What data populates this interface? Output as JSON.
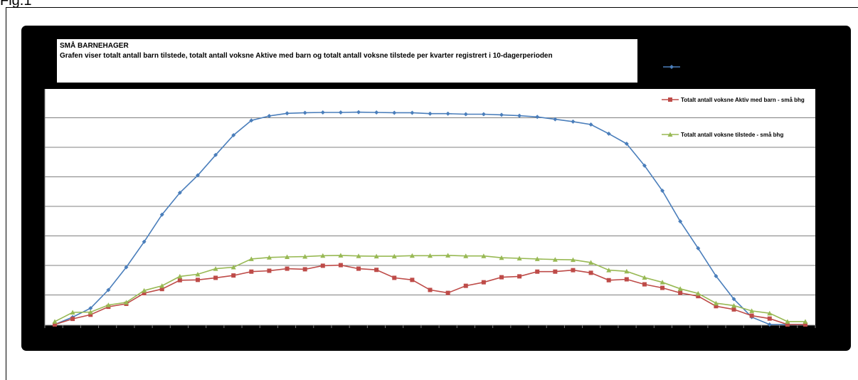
{
  "figure": {
    "label": "Fig.1"
  },
  "chart_data": {
    "type": "line",
    "title": "SMÅ BARNEHAGER",
    "subtitle": "Grafen viser totalt antall barn tilstede, totalt antall voksne Aktive med barn og totalt antall voksne tilstede per kvarter registrert i 10-dagerperioden",
    "xlabel": "",
    "ylabel": "",
    "ylim": [
      0,
      7
    ],
    "grid": true,
    "legend_position": "right",
    "x": [
      1,
      2,
      3,
      4,
      5,
      6,
      7,
      8,
      9,
      10,
      11,
      12,
      13,
      14,
      15,
      16,
      17,
      18,
      19,
      20,
      21,
      22,
      23,
      24,
      25,
      26,
      27,
      28,
      29,
      30,
      31,
      32,
      33,
      34,
      35,
      36,
      37,
      38,
      39,
      40,
      41,
      42,
      43
    ],
    "series": [
      {
        "name": "",
        "color": "#4a7ebb",
        "marker": "diamond",
        "values": [
          0.0,
          0.25,
          0.55,
          1.17,
          1.94,
          2.8,
          3.72,
          4.46,
          5.05,
          5.74,
          6.41,
          6.91,
          7.06,
          7.15,
          7.17,
          7.18,
          7.18,
          7.19,
          7.18,
          7.17,
          7.17,
          7.14,
          7.14,
          7.12,
          7.12,
          7.1,
          7.07,
          7.03,
          6.95,
          6.87,
          6.77,
          6.46,
          6.12,
          5.38,
          4.53,
          3.49,
          2.58,
          1.64,
          0.86,
          0.25,
          0.0,
          0.0,
          0.0
        ]
      },
      {
        "name": "Totalt antall voksne Aktiv med barn - små bhg",
        "color": "#be4b48",
        "marker": "square",
        "values": [
          0.0,
          0.19,
          0.33,
          0.6,
          0.7,
          1.06,
          1.2,
          1.5,
          1.51,
          1.58,
          1.66,
          1.79,
          1.82,
          1.89,
          1.87,
          1.99,
          2.01,
          1.89,
          1.85,
          1.58,
          1.51,
          1.17,
          1.07,
          1.31,
          1.43,
          1.6,
          1.63,
          1.79,
          1.79,
          1.84,
          1.75,
          1.5,
          1.53,
          1.36,
          1.24,
          1.07,
          0.96,
          0.62,
          0.51,
          0.3,
          0.2,
          0.0,
          0.0
        ]
      },
      {
        "name": "Totalt antall voksne tilstede - små bhg",
        "color": "#98b954",
        "marker": "triangle",
        "values": [
          0.1,
          0.41,
          0.42,
          0.66,
          0.75,
          1.15,
          1.31,
          1.63,
          1.7,
          1.89,
          1.94,
          2.22,
          2.27,
          2.29,
          2.3,
          2.33,
          2.34,
          2.32,
          2.31,
          2.31,
          2.33,
          2.33,
          2.34,
          2.32,
          2.32,
          2.26,
          2.24,
          2.22,
          2.2,
          2.19,
          2.1,
          1.84,
          1.8,
          1.59,
          1.43,
          1.21,
          1.05,
          0.72,
          0.64,
          0.46,
          0.38,
          0.1,
          0.1
        ]
      }
    ]
  }
}
